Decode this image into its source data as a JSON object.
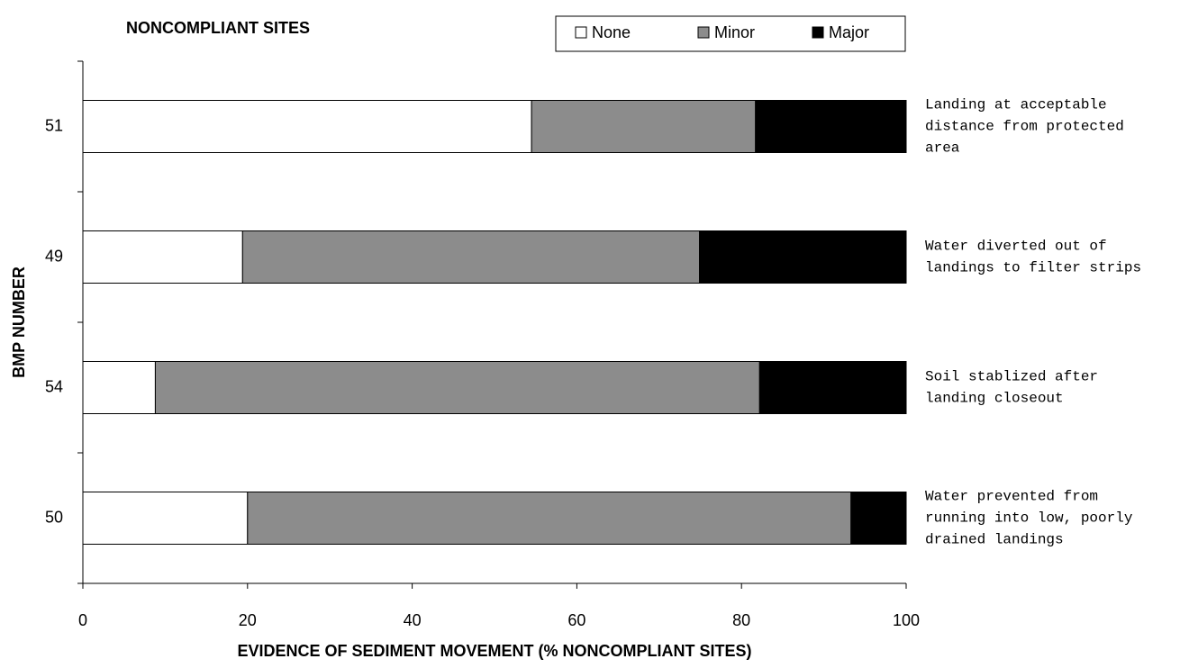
{
  "chart_data": {
    "type": "stacked-barh",
    "title": "NONCOMPLIANT SITES",
    "xlabel": "EVIDENCE OF SEDIMENT MOVEMENT (% NONCOMPLIANT SITES)",
    "ylabel": "BMP NUMBER",
    "categories": [
      "51",
      "49",
      "54",
      "50"
    ],
    "series": [
      {
        "name": "None",
        "color": "#ffffff",
        "values": [
          54.5,
          19.4,
          8.8,
          20.0
        ]
      },
      {
        "name": "Minor",
        "color": "#8c8c8c",
        "values": [
          27.2,
          55.5,
          73.4,
          73.3
        ]
      },
      {
        "name": "Major",
        "color": "#000000",
        "values": [
          18.3,
          25.1,
          17.8,
          6.7
        ]
      }
    ],
    "annotations": [
      [
        "Landing at acceptable",
        "distance from protected",
        "area"
      ],
      [
        "Water diverted out of",
        "landings to filter strips"
      ],
      [
        "Soil stablized after",
        "landing closeout"
      ],
      [
        "Water prevented from",
        "running into low, poorly",
        "drained landings"
      ]
    ],
    "xlim": [
      0,
      100
    ],
    "xticks": [
      0,
      20,
      40,
      60,
      80,
      100
    ],
    "grid": false
  }
}
